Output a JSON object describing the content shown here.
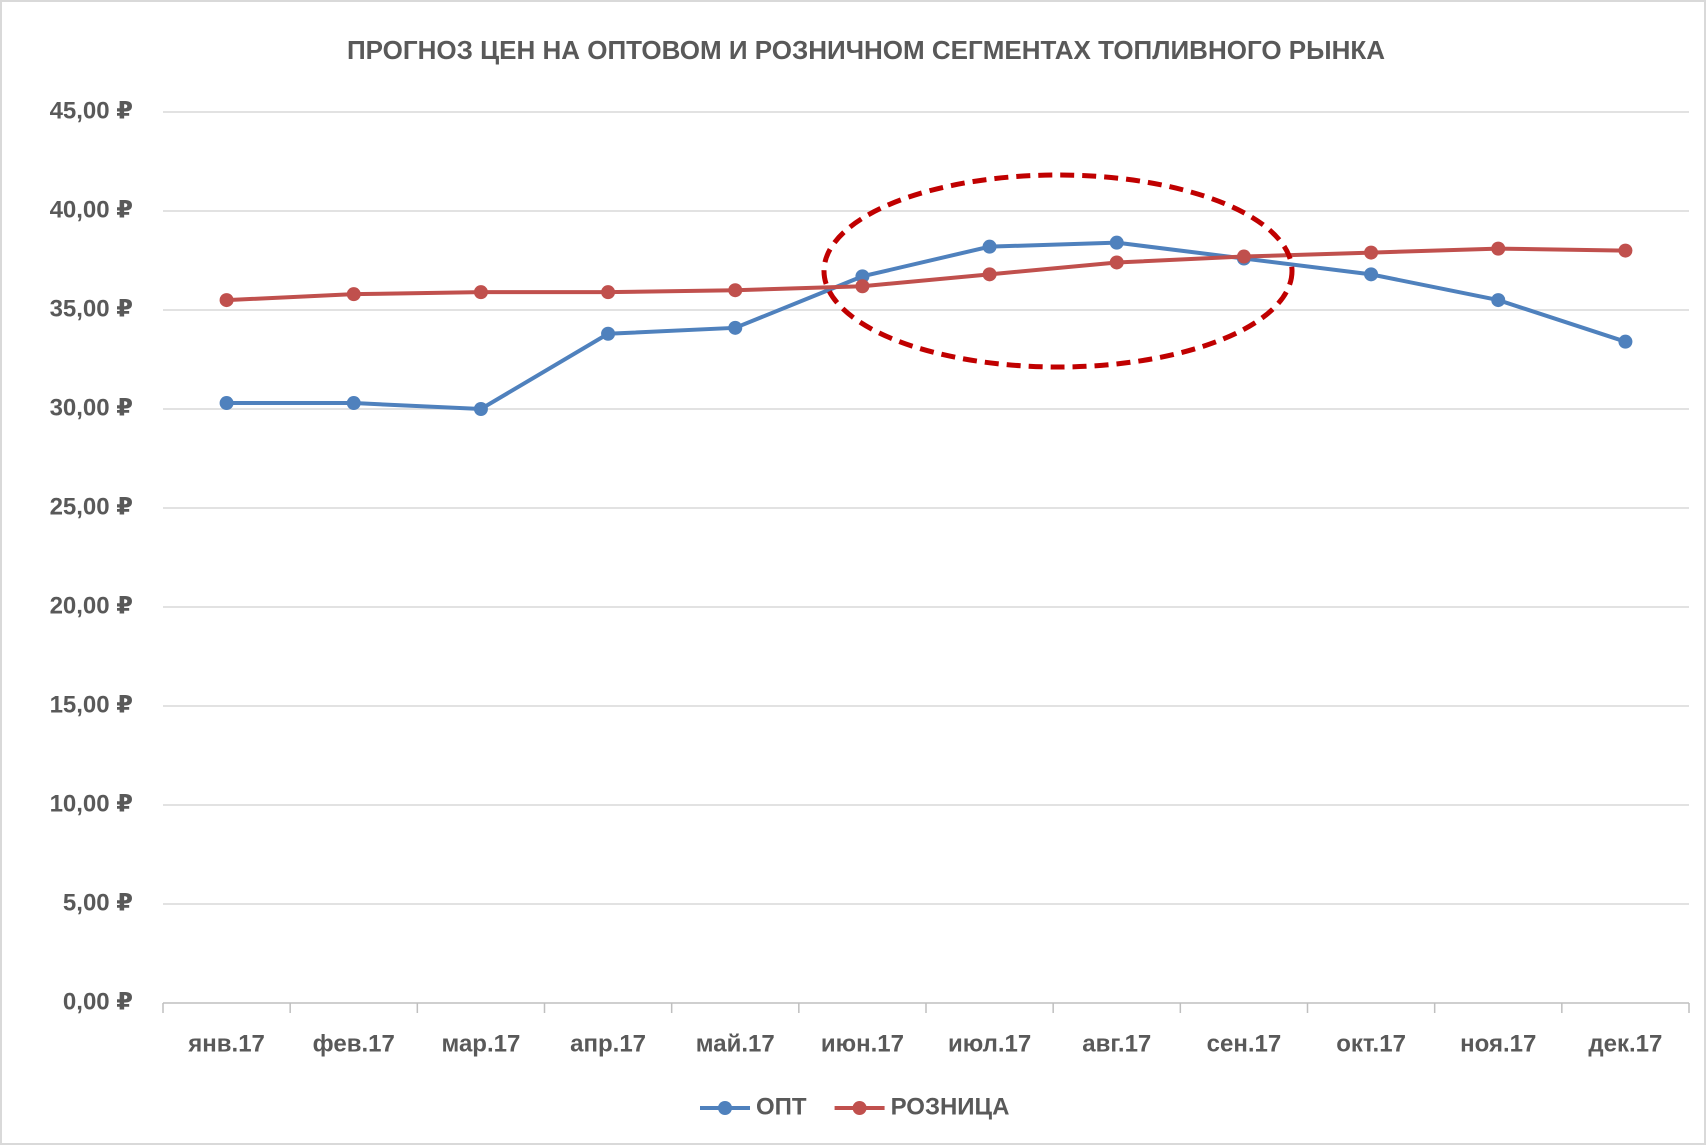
{
  "chart_data": {
    "type": "line",
    "title": "ПРОГНОЗ ЦЕН НА ОПТОВОМ И РОЗНИЧНОМ СЕГМЕНТАХ ТОПЛИВНОГО РЫНКА",
    "categories": [
      "янв.17",
      "фев.17",
      "мар.17",
      "апр.17",
      "май.17",
      "июн.17",
      "июл.17",
      "авг.17",
      "сен.17",
      "окт.17",
      "ноя.17",
      "дек.17"
    ],
    "series": [
      {
        "name": "ОПТ",
        "color": "#4f81bd",
        "values": [
          30.3,
          30.3,
          30.0,
          33.8,
          34.1,
          36.7,
          38.2,
          38.4,
          37.6,
          36.8,
          35.5,
          33.4
        ]
      },
      {
        "name": "РОЗНИЦА",
        "color": "#c0504d",
        "values": [
          35.5,
          35.8,
          35.9,
          35.9,
          36.0,
          36.2,
          36.8,
          37.4,
          37.7,
          37.9,
          38.1,
          38.0
        ]
      }
    ],
    "ylim": [
      0,
      45
    ],
    "yticks": [
      {
        "value": 0,
        "label": "0,00 ₽"
      },
      {
        "value": 5,
        "label": "5,00 ₽"
      },
      {
        "value": 10,
        "label": "10,00 ₽"
      },
      {
        "value": 15,
        "label": "15,00 ₽"
      },
      {
        "value": 20,
        "label": "20,00 ₽"
      },
      {
        "value": 25,
        "label": "25,00 ₽"
      },
      {
        "value": 30,
        "label": "30,00 ₽"
      },
      {
        "value": 35,
        "label": "35,00 ₽"
      },
      {
        "value": 40,
        "label": "40,00 ₽"
      },
      {
        "value": 45,
        "label": "45,00 ₽"
      }
    ],
    "grid": true,
    "legend": "bottom"
  }
}
